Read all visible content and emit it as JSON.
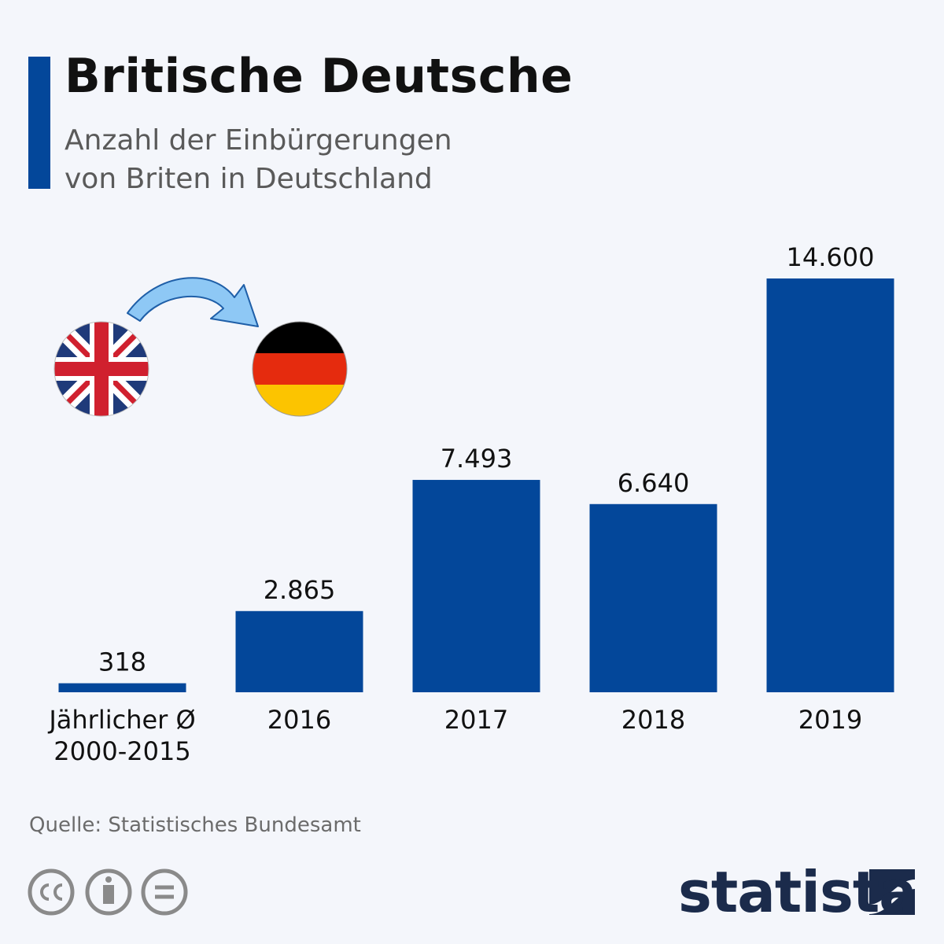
{
  "chart_data": {
    "type": "bar",
    "title": "Britische Deutsche",
    "subtitle": "Anzahl der Einbürgerungen von Briten in Deutschland",
    "categories": [
      "Jährlicher Ø 2000-2015",
      "2016",
      "2017",
      "2018",
      "2019"
    ],
    "values": [
      318,
      2865,
      7493,
      6640,
      14600
    ],
    "value_labels": [
      "318",
      "2.865",
      "7.493",
      "6.640",
      "14.600"
    ],
    "color": "#03479a",
    "source": "Quelle: Statistisches Bundesamt",
    "brand": "statista"
  }
}
